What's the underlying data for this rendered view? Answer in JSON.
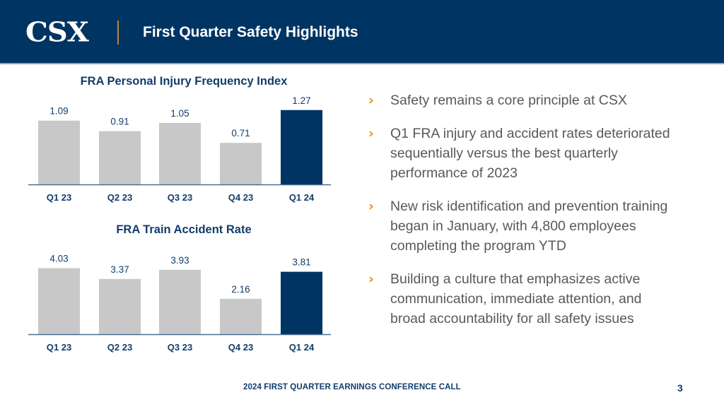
{
  "header": {
    "logo": "CSX",
    "title": "First Quarter Safety Highlights"
  },
  "colors": {
    "navy": "#003463",
    "bar_gray": "#c8c8c8",
    "highlight_bar": "#003463",
    "accent_orange": "#f28c1f",
    "logo_divider_gold": "#b6883f"
  },
  "chart_data": [
    {
      "type": "bar",
      "title": "FRA Personal Injury Frequency Index",
      "categories": [
        "Q1 23",
        "Q2 23",
        "Q3 23",
        "Q4 23",
        "Q1 24"
      ],
      "values": [
        1.09,
        0.91,
        1.05,
        0.71,
        1.27
      ],
      "value_labels": [
        "1.09",
        "0.91",
        "1.05",
        "0.71",
        "1.27"
      ],
      "highlight_index": 4,
      "xlabel": "",
      "ylabel": "",
      "ylim": [
        0,
        1.4
      ],
      "grid": false,
      "legend": "none"
    },
    {
      "type": "bar",
      "title": "FRA Train Accident Rate",
      "categories": [
        "Q1 23",
        "Q2 23",
        "Q3 23",
        "Q4 23",
        "Q1 24"
      ],
      "values": [
        4.03,
        3.37,
        3.93,
        2.16,
        3.81
      ],
      "value_labels": [
        "4.03",
        "3.37",
        "3.93",
        "2.16",
        "3.81"
      ],
      "highlight_index": 4,
      "xlabel": "",
      "ylabel": "",
      "ylim": [
        0,
        5
      ],
      "grid": false,
      "legend": "none"
    }
  ],
  "bullets": {
    "icon": "chevron-right-icon",
    "glyph": "›",
    "items": [
      "Safety remains a core principle at CSX",
      "Q1 FRA injury and accident rates deteriorated sequentially versus the best quarterly performance of 2023",
      "New risk identification and prevention training began in January, with 4,800 employees completing the program YTD",
      "Building a culture that emphasizes active communication, immediate attention, and broad accountability for all safety issues"
    ]
  },
  "footer": {
    "text": "2024 FIRST QUARTER EARNINGS CONFERENCE CALL",
    "page_number": "3"
  }
}
